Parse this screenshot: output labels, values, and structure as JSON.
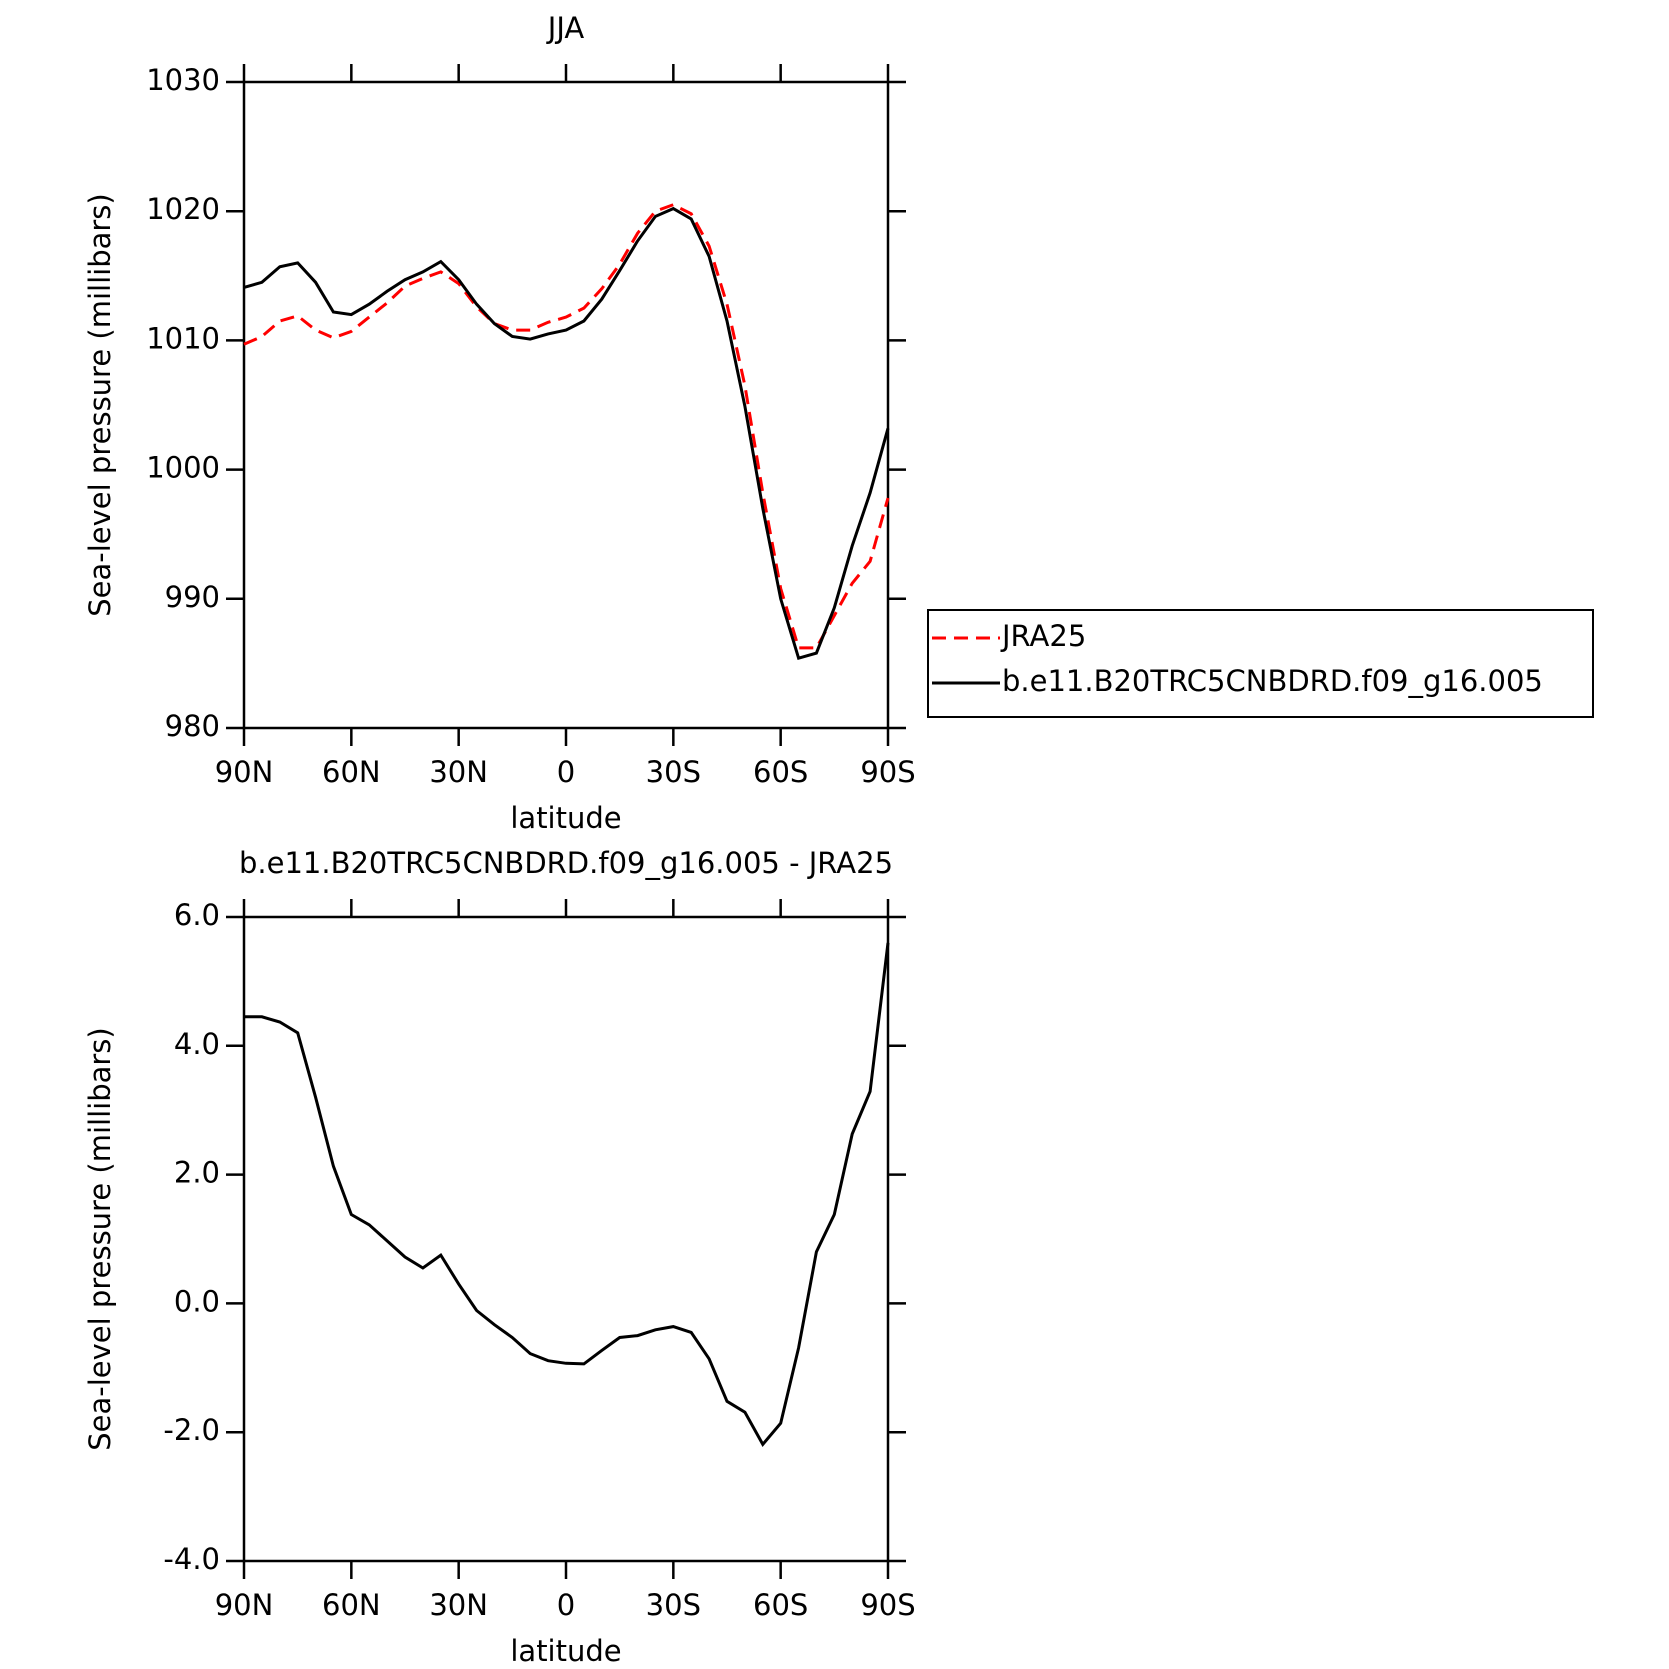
{
  "chart_data": [
    {
      "type": "line",
      "title": "JJA",
      "xlabel": "latitude",
      "ylabel": "Sea-level pressure (millibars)",
      "x": [
        90,
        85,
        80,
        75,
        70,
        65,
        60,
        55,
        50,
        45,
        40,
        35,
        30,
        25,
        20,
        15,
        10,
        5,
        0,
        -5,
        -10,
        -15,
        -20,
        -25,
        -30,
        -35,
        -40,
        -45,
        -50,
        -55,
        -60,
        -65,
        -70,
        -75,
        -80,
        -85,
        -90
      ],
      "series": [
        {
          "name": "JRA25",
          "color": "#ff0000",
          "line_style": "dashed",
          "values": [
            1009.7,
            1010.3,
            1011.5,
            1011.9,
            1010.8,
            1010.2,
            1010.7,
            1011.8,
            1012.9,
            1014.2,
            1014.8,
            1015.3,
            1014.4,
            1012.6,
            1011.3,
            1010.8,
            1010.8,
            1011.4,
            1011.8,
            1012.5,
            1014.0,
            1015.9,
            1018.3,
            1020.0,
            1020.5,
            1019.8,
            1017.3,
            1012.8,
            1006.5,
            998.2,
            990.8,
            986.2,
            986.2,
            988.7,
            991.2,
            992.9,
            997.8
          ]
        },
        {
          "name": "b.e11.B20TRC5CNBDRD.f09_g16.005",
          "color": "#000000",
          "line_style": "solid",
          "values": [
            1014.1,
            1014.5,
            1015.7,
            1016.0,
            1014.5,
            1012.2,
            1012.0,
            1012.8,
            1013.8,
            1014.7,
            1015.3,
            1016.1,
            1014.7,
            1012.8,
            1011.3,
            1010.3,
            1010.1,
            1010.5,
            1010.8,
            1011.5,
            1013.2,
            1015.4,
            1017.7,
            1019.6,
            1020.2,
            1019.4,
            1016.5,
            1011.5,
            1004.9,
            997.0,
            990.0,
            985.4,
            985.8,
            989.3,
            994.1,
            998.2,
            1003.2
          ]
        }
      ],
      "xlim": [
        90,
        -90
      ],
      "xticks": [
        {
          "value": 90,
          "label": "90N"
        },
        {
          "value": 60,
          "label": "60N"
        },
        {
          "value": 30,
          "label": "30N"
        },
        0,
        {
          "value": -30,
          "label": "30S"
        },
        {
          "value": -60,
          "label": "60S"
        },
        {
          "value": -90,
          "label": "90S"
        }
      ],
      "ylim": [
        980,
        1030
      ],
      "yticks": [
        980,
        990,
        1000,
        1010,
        1020,
        1030
      ],
      "legend": "right"
    },
    {
      "type": "line",
      "title": "b.e11.B20TRC5CNBDRD.f09_g16.005 - JRA25",
      "xlabel": "latitude",
      "ylabel": "Sea-level pressure (millibars)",
      "x": [
        90,
        85,
        80,
        75,
        70,
        65,
        60,
        55,
        50,
        45,
        40,
        35,
        30,
        25,
        20,
        15,
        10,
        5,
        0,
        -5,
        -10,
        -15,
        -20,
        -25,
        -30,
        -35,
        -40,
        -45,
        -50,
        -55,
        -60,
        -65,
        -70,
        -75,
        -80,
        -85,
        -90
      ],
      "series": [
        {
          "color": "#000000",
          "line_style": "solid",
          "values": [
            4.45,
            4.45,
            4.37,
            4.2,
            3.2,
            2.13,
            1.38,
            1.22,
            0.97,
            0.72,
            0.55,
            0.75,
            0.3,
            -0.11,
            -0.33,
            -0.53,
            -0.78,
            -0.89,
            -0.93,
            -0.94,
            -0.73,
            -0.53,
            -0.5,
            -0.41,
            -0.36,
            -0.45,
            -0.86,
            -1.52,
            -1.69,
            -2.19,
            -1.86,
            -0.69,
            0.8,
            1.38,
            2.63,
            3.29,
            5.6
          ]
        }
      ],
      "xlim": [
        90,
        -90
      ],
      "xticks": [
        {
          "value": 90,
          "label": "90N"
        },
        {
          "value": 60,
          "label": "60N"
        },
        {
          "value": 30,
          "label": "30N"
        },
        0,
        {
          "value": -30,
          "label": "30S"
        },
        {
          "value": -60,
          "label": "60S"
        },
        {
          "value": -90,
          "label": "90S"
        }
      ],
      "ylim": [
        -4,
        6
      ],
      "yticks": [
        {
          "value": -4,
          "label": "-4.0"
        },
        {
          "value": -2,
          "label": "-2.0"
        },
        {
          "value": 0,
          "label": "0.0"
        },
        {
          "value": 2,
          "label": "2.0"
        },
        {
          "value": 4,
          "label": "4.0"
        },
        {
          "value": 6,
          "label": "6.0"
        }
      ]
    }
  ]
}
